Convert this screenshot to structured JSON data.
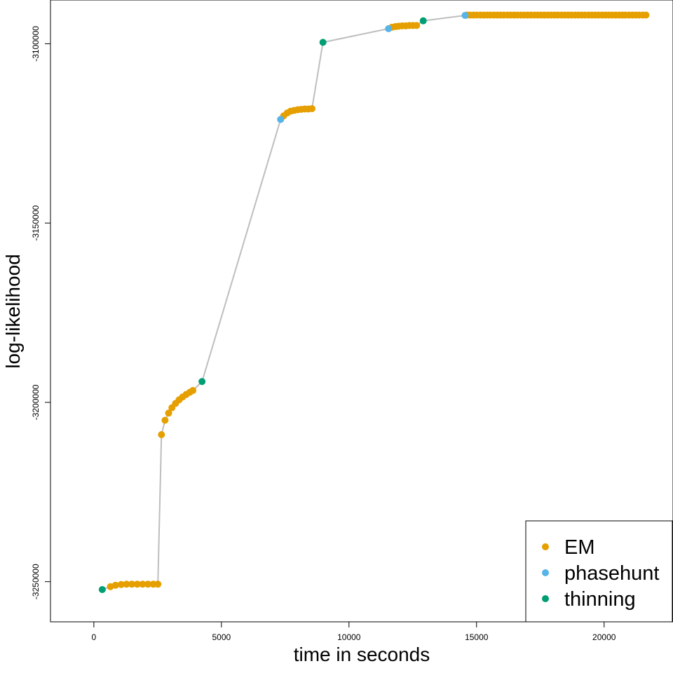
{
  "chart_data": {
    "type": "scatter",
    "xlabel": "time in seconds",
    "ylabel": "log-likelihood",
    "xlim": [
      -1700,
      22700
    ],
    "ylim": [
      -3261200,
      -3087800
    ],
    "xticks": [
      0,
      5000,
      10000,
      15000,
      20000
    ],
    "xtick_labels": [
      "0",
      "5000",
      "10000",
      "15000",
      "20000"
    ],
    "yticks": [
      -3250000,
      -3200000,
      -3150000,
      -3100000
    ],
    "ytick_labels": [
      "-3250000",
      "-3200000",
      "-3150000",
      "-3100000"
    ],
    "grid": false,
    "legend_position": "bottom-right",
    "connecting_line_color": "#bebebe",
    "series": [
      {
        "name": "EM",
        "color": "#E69F00",
        "points": [
          [
            650,
            -3251400
          ],
          [
            850,
            -3251000
          ],
          [
            1070,
            -3250800
          ],
          [
            1280,
            -3250700
          ],
          [
            1490,
            -3250700
          ],
          [
            1700,
            -3250700
          ],
          [
            1910,
            -3250700
          ],
          [
            2120,
            -3250700
          ],
          [
            2330,
            -3250700
          ],
          [
            2510,
            -3250700
          ],
          [
            2650,
            -3209000
          ],
          [
            2790,
            -3205000
          ],
          [
            2930,
            -3203000
          ],
          [
            3060,
            -3201500
          ],
          [
            3200,
            -3200300
          ],
          [
            3340,
            -3199300
          ],
          [
            3480,
            -3198500
          ],
          [
            3620,
            -3197800
          ],
          [
            3760,
            -3197200
          ],
          [
            3880,
            -3196700
          ],
          [
            7440,
            -3120100
          ],
          [
            7580,
            -3119300
          ],
          [
            7710,
            -3118800
          ],
          [
            7850,
            -3118600
          ],
          [
            7990,
            -3118400
          ],
          [
            8130,
            -3118300
          ],
          [
            8270,
            -3118200
          ],
          [
            8410,
            -3118200
          ],
          [
            8550,
            -3118100
          ],
          [
            11680,
            -3095400
          ],
          [
            11820,
            -3095200
          ],
          [
            11950,
            -3095100
          ],
          [
            12090,
            -3095000
          ],
          [
            12230,
            -3095000
          ],
          [
            12370,
            -3094900
          ],
          [
            12510,
            -3094900
          ],
          [
            12650,
            -3094900
          ],
          [
            14620,
            -3092000
          ],
          [
            14750,
            -3092000
          ],
          [
            14880,
            -3092000
          ],
          [
            15010,
            -3092000
          ],
          [
            15150,
            -3092000
          ],
          [
            15280,
            -3092000
          ],
          [
            15410,
            -3092000
          ],
          [
            15540,
            -3092000
          ],
          [
            15680,
            -3092000
          ],
          [
            15810,
            -3092000
          ],
          [
            15940,
            -3092000
          ],
          [
            16070,
            -3092000
          ],
          [
            16210,
            -3092000
          ],
          [
            16340,
            -3092000
          ],
          [
            16470,
            -3092000
          ],
          [
            16600,
            -3092000
          ],
          [
            16740,
            -3092000
          ],
          [
            16870,
            -3092000
          ],
          [
            17000,
            -3092000
          ],
          [
            17130,
            -3092000
          ],
          [
            17270,
            -3092000
          ],
          [
            17400,
            -3092000
          ],
          [
            17530,
            -3092000
          ],
          [
            17660,
            -3092000
          ],
          [
            17800,
            -3092000
          ],
          [
            17930,
            -3092000
          ],
          [
            18060,
            -3092000
          ],
          [
            18190,
            -3092000
          ],
          [
            18330,
            -3092000
          ],
          [
            18460,
            -3092000
          ],
          [
            18590,
            -3092000
          ],
          [
            18720,
            -3092000
          ],
          [
            18860,
            -3092000
          ],
          [
            18990,
            -3092000
          ],
          [
            19120,
            -3092000
          ],
          [
            19250,
            -3092000
          ],
          [
            19390,
            -3092000
          ],
          [
            19520,
            -3092000
          ],
          [
            19650,
            -3092000
          ],
          [
            19780,
            -3092000
          ],
          [
            19920,
            -3092000
          ],
          [
            20050,
            -3092000
          ],
          [
            20180,
            -3092000
          ],
          [
            20310,
            -3092000
          ],
          [
            20450,
            -3092000
          ],
          [
            20580,
            -3092000
          ],
          [
            20710,
            -3092000
          ],
          [
            20840,
            -3092000
          ],
          [
            20980,
            -3092000
          ],
          [
            21110,
            -3092000
          ],
          [
            21240,
            -3092000
          ],
          [
            21370,
            -3092000
          ],
          [
            21510,
            -3092000
          ],
          [
            21640,
            -3092000
          ]
        ]
      },
      {
        "name": "phasehunt",
        "color": "#56B4E9",
        "points": [
          [
            7320,
            -3121100
          ],
          [
            11550,
            -3095800
          ],
          [
            14550,
            -3092100
          ]
        ]
      },
      {
        "name": "thinning",
        "color": "#009E73",
        "points": [
          [
            330,
            -3252200
          ],
          [
            4240,
            -3194200
          ],
          [
            8980,
            -3099600
          ],
          [
            12910,
            -3093600
          ]
        ]
      }
    ]
  }
}
